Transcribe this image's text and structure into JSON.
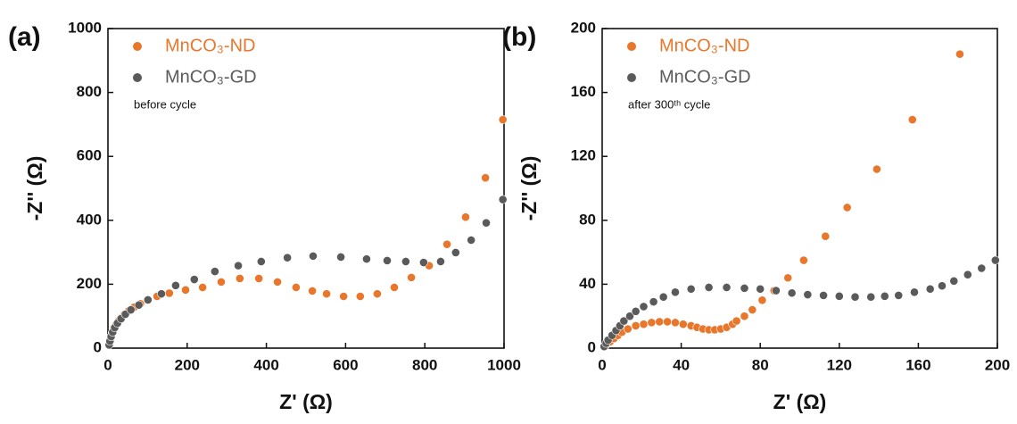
{
  "chart_data": [
    {
      "type": "scatter",
      "panel_label": "(a)",
      "annotation": "before cycle",
      "xlabel": "Z' (Ω)",
      "ylabel": "-Z'' (Ω)",
      "xlim": [
        0,
        1000
      ],
      "xticks": [
        0,
        200,
        400,
        600,
        800,
        1000
      ],
      "ylim": [
        0,
        1000
      ],
      "yticks": [
        0,
        200,
        400,
        600,
        800,
        1000
      ],
      "series": [
        {
          "name": "MnCO₃-ND",
          "color": "#e8762b",
          "x": [
            3,
            5,
            8,
            11,
            15,
            20,
            26,
            33,
            42,
            53,
            66,
            82,
            100,
            124,
            155,
            196,
            239,
            286,
            333,
            381,
            428,
            475,
            516,
            552,
            595,
            637,
            680,
            723,
            766,
            811,
            856,
            903,
            953,
            997
          ],
          "values": [
            10,
            22,
            35,
            48,
            60,
            72,
            84,
            95,
            106,
            117,
            128,
            139,
            150,
            162,
            172,
            182,
            190,
            207,
            218,
            218,
            207,
            190,
            179,
            170,
            162,
            162,
            170,
            190,
            221,
            258,
            325,
            410,
            533,
            715
          ]
        },
        {
          "name": "MnCO₃-GD",
          "color": "#5a5a5a",
          "x": [
            3,
            5,
            8,
            12,
            17,
            24,
            33,
            44,
            58,
            78,
            101,
            135,
            171,
            218,
            270,
            329,
            387,
            453,
            518,
            588,
            653,
            705,
            752,
            797,
            840,
            878,
            917,
            955,
            997
          ],
          "values": [
            10,
            22,
            36,
            50,
            64,
            78,
            92,
            106,
            120,
            135,
            151,
            170,
            196,
            215,
            240,
            258,
            271,
            283,
            288,
            285,
            279,
            274,
            271,
            268,
            271,
            299,
            338,
            392,
            465
          ]
        }
      ]
    },
    {
      "type": "scatter",
      "panel_label": "(b)",
      "annotation": "after 300ᵗʰ cycle",
      "xlabel": "Z' (Ω)",
      "ylabel": "-Z'' (Ω)",
      "xlim": [
        0,
        200
      ],
      "xticks": [
        0,
        40,
        80,
        120,
        160,
        200
      ],
      "ylim": [
        0,
        200
      ],
      "yticks": [
        0,
        40,
        80,
        120,
        160,
        200
      ],
      "series": [
        {
          "name": "MnCO₃-ND",
          "color": "#e8762b",
          "x": [
            1,
            2,
            4,
            6,
            8,
            10,
            13,
            17,
            21,
            25,
            29,
            33,
            37,
            41,
            45,
            48,
            51,
            54,
            57,
            60,
            63,
            66,
            68,
            72,
            76,
            81,
            87,
            94,
            102,
            113,
            124,
            139,
            157,
            181
          ],
          "values": [
            1,
            2,
            4,
            6,
            8,
            10,
            12,
            14,
            15,
            16,
            16.5,
            16.5,
            16,
            15,
            14,
            13,
            12,
            11.5,
            11.5,
            12,
            13,
            15,
            17,
            20,
            24,
            30,
            36,
            44,
            55,
            70,
            88,
            112,
            143,
            184
          ]
        },
        {
          "name": "MnCO₃-GD",
          "color": "#5a5a5a",
          "x": [
            1,
            2,
            3,
            5,
            7,
            9,
            11,
            14,
            17,
            21,
            26,
            31,
            37,
            45,
            54,
            63,
            72,
            80,
            88,
            96,
            104,
            112,
            120,
            128,
            136,
            143,
            150,
            158,
            166,
            172,
            178,
            185,
            192,
            199
          ],
          "values": [
            1,
            3,
            5,
            8,
            11,
            14,
            17,
            20,
            23,
            26,
            29,
            32,
            35,
            37,
            38,
            38,
            37.5,
            37,
            36,
            34.5,
            33.5,
            33,
            32.5,
            32,
            32,
            32.5,
            33,
            35,
            37,
            39,
            42,
            46,
            50,
            55
          ]
        }
      ]
    }
  ]
}
